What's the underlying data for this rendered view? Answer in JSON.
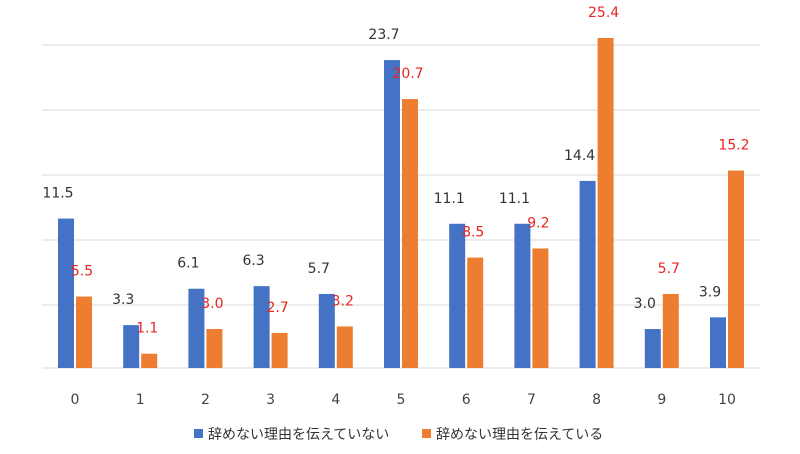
{
  "chart_data": {
    "type": "bar",
    "title": "",
    "xlabel": "",
    "ylabel": "",
    "categories": [
      "0",
      "1",
      "2",
      "3",
      "4",
      "5",
      "6",
      "7",
      "8",
      "9",
      "10"
    ],
    "ylim": [
      0,
      25.4
    ],
    "grid": true,
    "legend_position": "bottom",
    "series": [
      {
        "name": "辞めない理由を伝えていない",
        "color": "#4472C4",
        "label_color": "#333333",
        "values": [
          11.5,
          3.3,
          6.1,
          6.3,
          5.7,
          23.7,
          11.1,
          11.1,
          14.4,
          3.0,
          3.9
        ]
      },
      {
        "name": "辞めない理由を伝えている",
        "color": "#ED7D31",
        "label_color": "#E8251F",
        "values": [
          5.5,
          1.1,
          3.0,
          2.7,
          3.2,
          20.7,
          8.5,
          9.2,
          25.4,
          5.7,
          15.2
        ]
      }
    ]
  }
}
